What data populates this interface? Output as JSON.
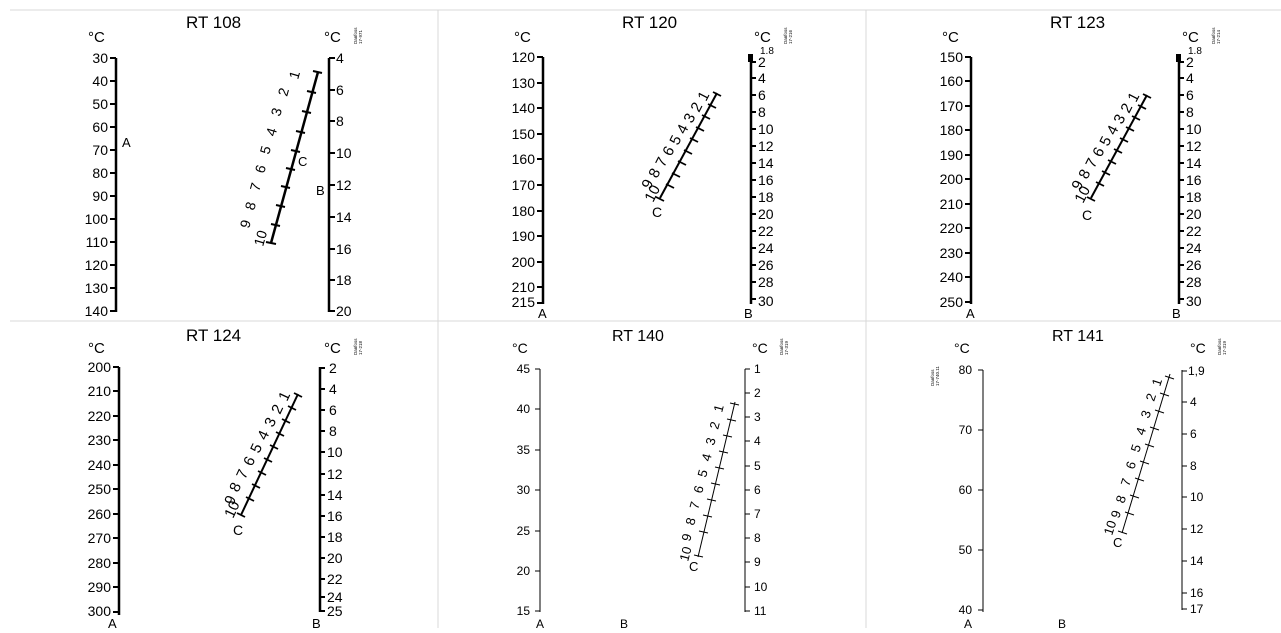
{
  "panels": [
    {
      "title": "RT 108",
      "unit_a": "°C",
      "unit_b": "°C",
      "code": [
        "Danfoss",
        "17-971"
      ],
      "axis_a": {
        "ticks": [
          "30",
          "40",
          "50",
          "60",
          "70",
          "80",
          "90",
          "100",
          "110",
          "120",
          "130",
          "140"
        ],
        "label": "A"
      },
      "axis_b": {
        "ticks": [
          "4",
          "6",
          "8",
          "10",
          "12",
          "14",
          "16",
          "18",
          "20"
        ],
        "label": "B"
      },
      "diff": {
        "numbers": [
          "2",
          "1",
          "3",
          "4",
          "5",
          "6",
          "7",
          "8",
          "9",
          "10"
        ],
        "label": "C"
      }
    },
    {
      "title": "RT 120",
      "unit_a": "°C",
      "unit_b": "°C",
      "code": [
        "Danfoss",
        "17-216"
      ],
      "axis_a": {
        "ticks": [
          "120",
          "130",
          "140",
          "150",
          "160",
          "170",
          "180",
          "190",
          "200",
          "210",
          "215"
        ],
        "label": "A"
      },
      "axis_b": {
        "ticks": [
          "1.8",
          "2",
          "4",
          "6",
          "8",
          "10",
          "12",
          "14",
          "16",
          "18",
          "20",
          "22",
          "24",
          "26",
          "28",
          "30"
        ],
        "label": "B"
      },
      "diff": {
        "numbers": [
          "1",
          "2",
          "3",
          "4",
          "5",
          "6",
          "7",
          "8",
          "9",
          "10"
        ],
        "label": "C"
      }
    },
    {
      "title": "RT 123",
      "unit_a": "°C",
      "unit_b": "°C",
      "code": [
        "Danfoss",
        "17-214"
      ],
      "axis_a": {
        "ticks": [
          "150",
          "160",
          "170",
          "180",
          "190",
          "200",
          "210",
          "220",
          "230",
          "240",
          "250"
        ],
        "label": "A"
      },
      "axis_b": {
        "ticks": [
          "1.8",
          "2",
          "4",
          "6",
          "8",
          "10",
          "12",
          "14",
          "16",
          "18",
          "20",
          "22",
          "24",
          "26",
          "28",
          "30"
        ],
        "label": "B"
      },
      "diff": {
        "numbers": [
          "1",
          "2",
          "3",
          "4",
          "5",
          "6",
          "7",
          "8",
          "9",
          "10"
        ],
        "label": "C"
      }
    },
    {
      "title": "RT 124",
      "unit_a": "°C",
      "unit_b": "°C",
      "code": [
        "Danfoss",
        "17-218"
      ],
      "axis_a": {
        "ticks": [
          "200",
          "210",
          "220",
          "230",
          "240",
          "250",
          "260",
          "270",
          "280",
          "290",
          "300"
        ],
        "label": "A"
      },
      "axis_b": {
        "ticks": [
          "2",
          "4",
          "6",
          "8",
          "10",
          "12",
          "14",
          "16",
          "18",
          "20",
          "22",
          "24",
          "25"
        ],
        "label": "B"
      },
      "diff": {
        "numbers": [
          "1",
          "2",
          "3",
          "4",
          "5",
          "6",
          "7",
          "8",
          "9",
          "10"
        ],
        "label": "C"
      }
    },
    {
      "title": "RT 140",
      "unit_a": "°C",
      "unit_b": "°C",
      "code": [
        "Danfoss",
        "17-319"
      ],
      "axis_a": {
        "ticks": [
          "45",
          "40",
          "35",
          "30",
          "25",
          "20",
          "15"
        ],
        "label": "A",
        "label2": "B"
      },
      "axis_b": {
        "ticks": [
          "1",
          "2",
          "3",
          "4",
          "5",
          "6",
          "7",
          "8",
          "9",
          "10",
          "11"
        ]
      },
      "diff": {
        "numbers": [
          "1",
          "2",
          "3",
          "4",
          "5",
          "6",
          "7",
          "8",
          "9",
          "10"
        ],
        "label": "C"
      }
    },
    {
      "title": "RT 141",
      "unit_a": "°C",
      "unit_b": "°C",
      "code": [
        "Danfoss",
        "17-319"
      ],
      "code_left": [
        "Danfoss",
        "17-740.11"
      ],
      "axis_a": {
        "ticks": [
          "80",
          "70",
          "60",
          "50",
          "40"
        ],
        "label": "A",
        "label2": "B"
      },
      "axis_b": {
        "ticks": [
          "1,9",
          "4",
          "6",
          "8",
          "10",
          "12",
          "14",
          "16",
          "17"
        ]
      },
      "diff": {
        "numbers": [
          "1",
          "2",
          "3",
          "4",
          "5",
          "6",
          "7",
          "8",
          "9",
          "10"
        ],
        "label": "C"
      }
    }
  ]
}
